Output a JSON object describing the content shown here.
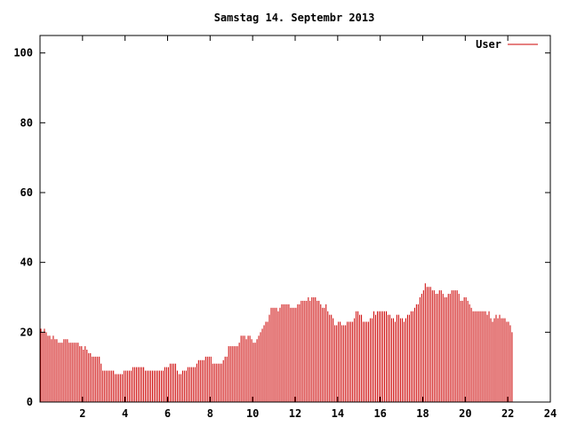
{
  "chart_data": {
    "type": "bar",
    "title": "Samstag 14. Septembr 2013",
    "xlabel": "",
    "ylabel": "",
    "xlim": [
      0,
      24
    ],
    "ylim": [
      0,
      105
    ],
    "x_ticks": [
      2,
      4,
      6,
      8,
      10,
      12,
      14,
      16,
      18,
      20,
      22,
      24
    ],
    "y_ticks": [
      0,
      20,
      40,
      60,
      80,
      100
    ],
    "grid": false,
    "legend_position": "top-right",
    "series": [
      {
        "name": "User",
        "color": "#cc0000",
        "x_step_hours": 0.0833,
        "values": [
          21,
          20,
          21,
          20,
          19,
          19,
          18,
          19,
          18,
          18,
          17,
          17,
          17,
          18,
          18,
          18,
          17,
          17,
          17,
          17,
          17,
          17,
          16,
          16,
          15,
          16,
          15,
          14,
          14,
          13,
          13,
          13,
          13,
          13,
          11,
          9,
          9,
          9,
          9,
          9,
          9,
          9,
          8,
          8,
          8,
          8,
          8,
          9,
          9,
          9,
          9,
          9,
          10,
          10,
          10,
          10,
          10,
          10,
          10,
          9,
          9,
          9,
          9,
          9,
          9,
          9,
          9,
          9,
          9,
          9,
          10,
          10,
          10,
          11,
          11,
          11,
          11,
          9,
          8,
          8,
          9,
          9,
          9,
          10,
          10,
          10,
          10,
          10,
          11,
          12,
          12,
          12,
          12,
          13,
          13,
          13,
          13,
          11,
          11,
          11,
          11,
          11,
          11,
          12,
          13,
          13,
          16,
          16,
          16,
          16,
          16,
          16,
          17,
          19,
          19,
          19,
          18,
          19,
          19,
          18,
          17,
          17,
          18,
          19,
          20,
          21,
          22,
          23,
          23,
          25,
          27,
          27,
          27,
          27,
          26,
          27,
          28,
          28,
          28,
          28,
          28,
          27,
          27,
          27,
          27,
          28,
          28,
          29,
          29,
          29,
          29,
          30,
          29,
          30,
          30,
          30,
          29,
          29,
          28,
          27,
          27,
          28,
          26,
          25,
          25,
          24,
          22,
          22,
          23,
          23,
          22,
          22,
          22,
          23,
          23,
          23,
          23,
          24,
          26,
          26,
          25,
          25,
          23,
          23,
          23,
          23,
          24,
          24,
          26,
          25,
          26,
          26,
          26,
          26,
          26,
          26,
          25,
          25,
          24,
          24,
          23,
          25,
          25,
          24,
          24,
          23,
          24,
          25,
          25,
          26,
          26,
          27,
          28,
          28,
          30,
          31,
          32,
          34,
          33,
          33,
          33,
          32,
          32,
          31,
          31,
          32,
          32,
          31,
          30,
          30,
          31,
          31,
          32,
          32,
          32,
          32,
          31,
          29,
          29,
          30,
          30,
          29,
          28,
          27,
          26,
          26,
          26,
          26,
          26,
          26,
          26,
          26,
          25,
          26,
          24,
          23,
          24,
          25,
          24,
          25,
          24,
          24,
          24,
          23,
          23,
          22,
          20
        ]
      }
    ]
  }
}
